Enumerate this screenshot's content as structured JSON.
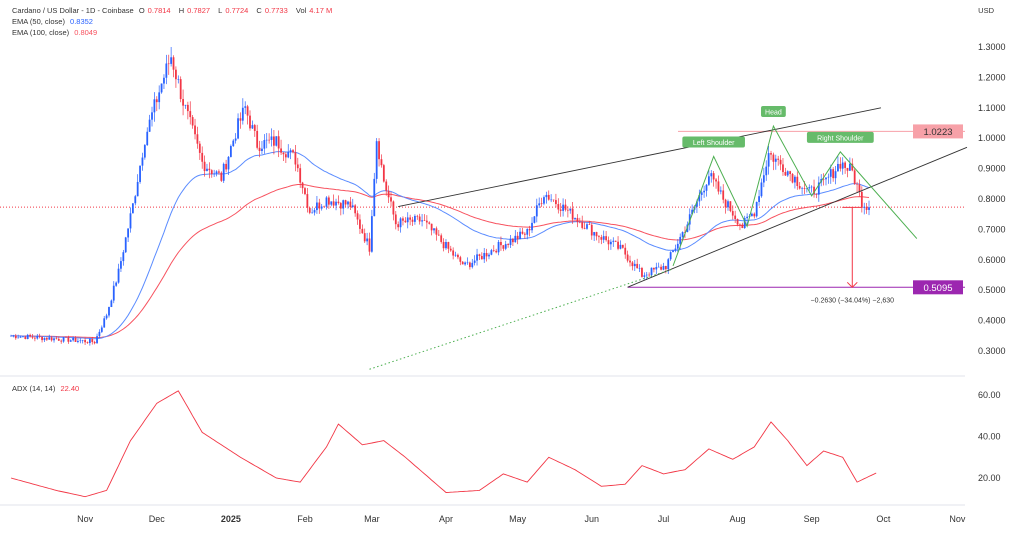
{
  "header": {
    "symbol": "Cardano / US Dollar - 1D - Coinbase",
    "o_label": "O",
    "o": "0.7814",
    "h_label": "H",
    "h": "0.7827",
    "l_label": "L",
    "l": "0.7724",
    "c_label": "C",
    "c": "0.7733",
    "vol_label": "Vol",
    "vol": "4.17 M",
    "currency": "USD"
  },
  "indicators": {
    "ema50_label": "EMA (50, close)",
    "ema50": "0.8352",
    "ema100_label": "EMA (100, close)",
    "ema100": "0.8049",
    "adx_label": "ADX (14, 14)",
    "adx": "22.40"
  },
  "colors": {
    "up": "#2962ff",
    "down": "#f23645",
    "ema50": "#5b8cff",
    "ema100": "#f7525f",
    "adx": "#f23645",
    "pattern": "#4caf50",
    "target": "#9c27b0"
  },
  "chart_data": {
    "type": "candlestick",
    "title": "Cardano / US Dollar - 1D - Coinbase",
    "start_date": "2024-10-01",
    "price_ticks": [
      "1.3000",
      "1.2000",
      "1.1000",
      "1.0000",
      "0.9000",
      "0.8000",
      "0.7000",
      "0.6000",
      "0.5000",
      "0.4000",
      "0.3000"
    ],
    "ylim": [
      0.22,
      1.35
    ],
    "time_ticks": [
      {
        "label": "Nov",
        "date": "2024-11-01"
      },
      {
        "label": "Dec",
        "date": "2024-12-01"
      },
      {
        "label": "2025",
        "date": "2025-01-01"
      },
      {
        "label": "Feb",
        "date": "2025-02-01"
      },
      {
        "label": "Mar",
        "date": "2025-03-01"
      },
      {
        "label": "Apr",
        "date": "2025-04-01"
      },
      {
        "label": "May",
        "date": "2025-05-01"
      },
      {
        "label": "Jun",
        "date": "2025-06-01"
      },
      {
        "label": "Jul",
        "date": "2025-07-01"
      },
      {
        "label": "Aug",
        "date": "2025-08-01"
      },
      {
        "label": "Sep",
        "date": "2025-09-01"
      },
      {
        "label": "Oct",
        "date": "2025-10-01"
      },
      {
        "label": "Nov",
        "date": "2025-11-01"
      }
    ],
    "close_keypoints": [
      [
        "2024-10-01",
        0.35
      ],
      [
        "2024-10-20",
        0.34
      ],
      [
        "2024-11-05",
        0.33
      ],
      [
        "2024-11-10",
        0.42
      ],
      [
        "2024-11-15",
        0.56
      ],
      [
        "2024-11-21",
        0.78
      ],
      [
        "2024-11-26",
        1.0
      ],
      [
        "2024-12-03",
        1.18
      ],
      [
        "2024-12-07",
        1.27
      ],
      [
        "2024-12-12",
        1.12
      ],
      [
        "2024-12-20",
        0.92
      ],
      [
        "2024-12-28",
        0.87
      ],
      [
        "2025-01-03",
        1.02
      ],
      [
        "2025-01-07",
        1.1
      ],
      [
        "2025-01-12",
        0.98
      ],
      [
        "2025-01-20",
        0.99
      ],
      [
        "2025-01-28",
        0.93
      ],
      [
        "2025-02-03",
        0.76
      ],
      [
        "2025-02-10",
        0.8
      ],
      [
        "2025-02-20",
        0.78
      ],
      [
        "2025-02-28",
        0.64
      ],
      [
        "2025-03-03",
        1.0
      ],
      [
        "2025-03-06",
        0.86
      ],
      [
        "2025-03-11",
        0.72
      ],
      [
        "2025-03-22",
        0.73
      ],
      [
        "2025-04-06",
        0.6
      ],
      [
        "2025-04-09",
        0.58
      ],
      [
        "2025-04-22",
        0.64
      ],
      [
        "2025-05-05",
        0.69
      ],
      [
        "2025-05-12",
        0.82
      ],
      [
        "2025-05-22",
        0.76
      ],
      [
        "2025-06-02",
        0.69
      ],
      [
        "2025-06-14",
        0.63
      ],
      [
        "2025-06-22",
        0.55
      ],
      [
        "2025-07-02",
        0.58
      ],
      [
        "2025-07-11",
        0.72
      ],
      [
        "2025-07-20",
        0.88
      ],
      [
        "2025-07-26",
        0.8
      ],
      [
        "2025-08-03",
        0.71
      ],
      [
        "2025-08-08",
        0.76
      ],
      [
        "2025-08-14",
        0.95
      ],
      [
        "2025-08-21",
        0.9
      ],
      [
        "2025-08-31",
        0.82
      ],
      [
        "2025-09-06",
        0.85
      ],
      [
        "2025-09-13",
        0.92
      ],
      [
        "2025-09-18",
        0.89
      ],
      [
        "2025-09-22",
        0.79
      ],
      [
        "2025-09-25",
        0.773
      ]
    ],
    "adx": {
      "ticks": [
        "60.00",
        "40.00",
        "20.00"
      ],
      "ylim": [
        5,
        68
      ],
      "keypoints": [
        [
          "2024-10-01",
          20
        ],
        [
          "2024-10-20",
          14
        ],
        [
          "2024-11-01",
          11
        ],
        [
          "2024-11-10",
          14
        ],
        [
          "2024-11-20",
          38
        ],
        [
          "2024-12-01",
          56
        ],
        [
          "2024-12-10",
          62
        ],
        [
          "2024-12-20",
          42
        ],
        [
          "2025-01-05",
          30
        ],
        [
          "2025-01-20",
          20
        ],
        [
          "2025-01-30",
          18
        ],
        [
          "2025-02-10",
          35
        ],
        [
          "2025-02-15",
          46
        ],
        [
          "2025-02-25",
          36
        ],
        [
          "2025-03-06",
          38
        ],
        [
          "2025-03-15",
          30
        ],
        [
          "2025-04-01",
          13
        ],
        [
          "2025-04-15",
          14
        ],
        [
          "2025-04-25",
          22
        ],
        [
          "2025-05-05",
          18
        ],
        [
          "2025-05-14",
          30
        ],
        [
          "2025-05-25",
          24
        ],
        [
          "2025-06-05",
          16
        ],
        [
          "2025-06-15",
          17
        ],
        [
          "2025-06-22",
          26
        ],
        [
          "2025-07-01",
          22
        ],
        [
          "2025-07-10",
          24
        ],
        [
          "2025-07-20",
          34
        ],
        [
          "2025-07-30",
          29
        ],
        [
          "2025-08-08",
          35
        ],
        [
          "2025-08-15",
          47
        ],
        [
          "2025-08-22",
          38
        ],
        [
          "2025-08-30",
          26
        ],
        [
          "2025-09-06",
          33
        ],
        [
          "2025-09-14",
          30
        ],
        [
          "2025-09-20",
          18
        ],
        [
          "2025-09-28",
          22.4
        ]
      ]
    },
    "annotations": {
      "resistance": {
        "value": 1.0223,
        "label": "1.0223"
      },
      "target": {
        "value": 0.5095,
        "label": "0.5095"
      },
      "last_price": 0.7733,
      "measure": {
        "from": 0.7725,
        "to": 0.5095,
        "date": "2025-09-18",
        "label": "−0.2630 (−34.04%) −2,630"
      },
      "upper_wedge": [
        [
          "2025-03-12",
          0.775
        ],
        [
          "2025-09-30",
          1.1
        ]
      ],
      "lower_wedge": [
        [
          "2025-06-16",
          0.51
        ],
        [
          "2025-11-05",
          0.97
        ]
      ],
      "dotted_trend": [
        [
          "2025-02-28",
          0.24
        ],
        [
          "2025-07-05",
          0.57
        ]
      ],
      "hs_pattern": [
        [
          "2025-07-05",
          0.58
        ],
        [
          "2025-07-22",
          0.94
        ],
        [
          "2025-08-05",
          0.71
        ],
        [
          "2025-08-16",
          1.04
        ],
        [
          "2025-09-01",
          0.81
        ],
        [
          "2025-09-13",
          0.955
        ],
        [
          "2025-10-15",
          0.67
        ]
      ],
      "pattern_labels": [
        {
          "text": "Left Shoulder",
          "date": "2025-07-22",
          "value": 0.94
        },
        {
          "text": "Head",
          "date": "2025-08-16",
          "value": 1.04
        },
        {
          "text": "Right Shoulder",
          "date": "2025-09-13",
          "value": 0.955
        }
      ]
    }
  }
}
